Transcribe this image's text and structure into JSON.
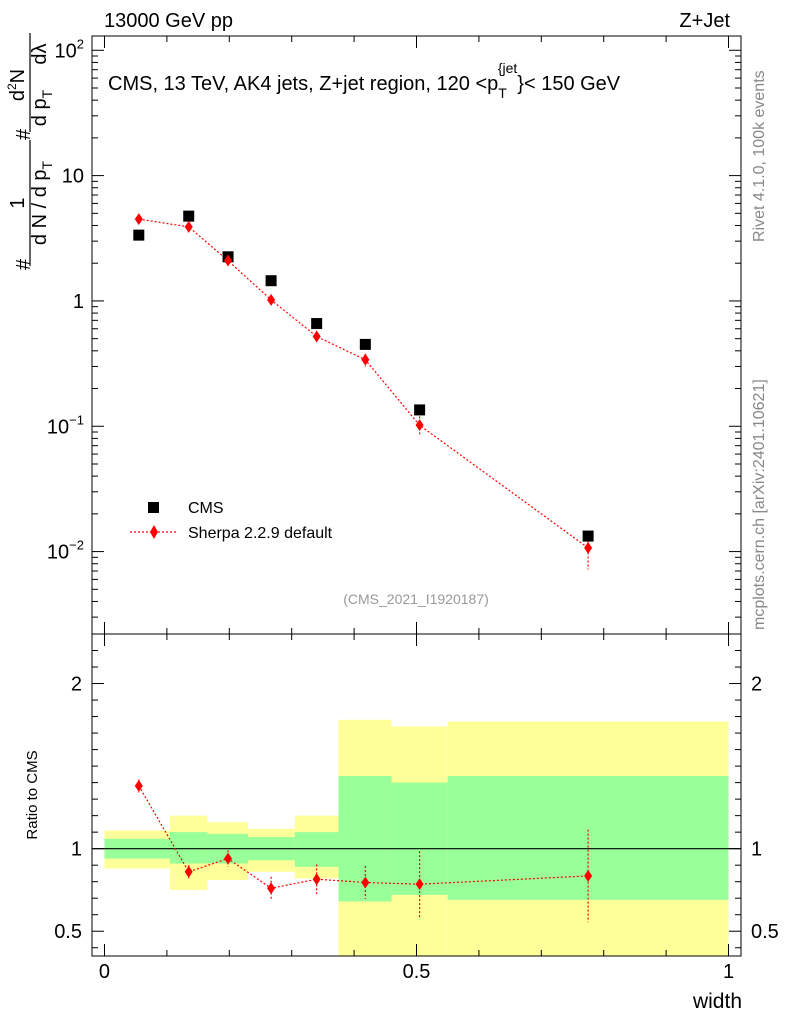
{
  "header": {
    "left": "13000 GeV pp",
    "right": "Z+Jet"
  },
  "side_labels": {
    "rivet": "Rivet 4.1.0,  100k events",
    "mcplots": "mcplots.cern.ch [arXiv:2401.10621]"
  },
  "colors": {
    "data": "#000000",
    "mc": "#ff0000",
    "band_inner": "#99ff99",
    "band_outer": "#ffff99",
    "axis": "#000000",
    "watermark": "#999999"
  },
  "chart_data": [
    {
      "type": "scatter",
      "log_y": true,
      "title": "CMS, 13 TeV, AK4 jets, Z+jet region, 120 <p",
      "title_sub": "T",
      "title_sup": "{jet",
      "title_tail": "}< 150 GeV",
      "watermark": "(CMS_2021_I1920187)",
      "xlim": [
        -0.02,
        1.02
      ],
      "ylim": [
        0.0022,
        130
      ],
      "ylabel": {
        "num_sym": "#",
        "num_frac_top": "1",
        "num_frac_bottom": "d N / d p",
        "num_frac_bottom_sub": "T",
        "num_hash": "#",
        "num_d2": "d",
        "num_d2_sup": "2",
        "num_d2_tail": "N",
        "num_dp": "d p",
        "num_dp_sub": "T",
        "num_dlambda": "d",
        "num_lambda": "λ"
      },
      "y_ticks": [
        {
          "value": 100,
          "base": "10",
          "exp": "2"
        },
        {
          "value": 10,
          "base": "10",
          "exp": ""
        },
        {
          "value": 1,
          "base": "1",
          "exp": ""
        },
        {
          "value": 0.1,
          "base": "10",
          "exp": "−1"
        },
        {
          "value": 0.01,
          "base": "10",
          "exp": "−2"
        }
      ],
      "x_edges": [
        0.0,
        0.105,
        0.165,
        0.23,
        0.305,
        0.375,
        0.46,
        0.55,
        1.0
      ],
      "series": [
        {
          "name": "CMS",
          "marker": "square",
          "x": [
            0.055,
            0.135,
            0.198,
            0.267,
            0.34,
            0.418,
            0.505,
            0.775
          ],
          "y": [
            3.35,
            4.75,
            2.25,
            1.45,
            0.66,
            0.45,
            0.135,
            0.0133
          ]
        },
        {
          "name": "Sherpa 2.2.9 default",
          "marker": "diamond",
          "line": "dotted",
          "x": [
            0.055,
            0.135,
            0.198,
            0.267,
            0.34,
            0.418,
            0.505,
            0.775
          ],
          "y": [
            4.5,
            3.9,
            2.1,
            1.02,
            0.52,
            0.34,
            0.102,
            0.0107
          ],
          "yerr": [
            0.1,
            0.15,
            0.1,
            0.06,
            0.05,
            0.04,
            0.018,
            0.0035
          ]
        }
      ]
    },
    {
      "type": "scatter",
      "ylabel": "Ratio to CMS",
      "xlabel": "width",
      "ylim": [
        0.35,
        2.3
      ],
      "xlim": [
        -0.02,
        1.02
      ],
      "y_ticks": [
        "0.5",
        "1",
        "2"
      ],
      "x_ticks": [
        "0",
        "0.5",
        "1"
      ],
      "x_tick_values": [
        0,
        0.5,
        1
      ],
      "y_tick_values": [
        0.5,
        1,
        2
      ],
      "band_bins": [
        {
          "lo": 0.0,
          "hi": 0.105,
          "inner": [
            0.94,
            1.06
          ],
          "outer": [
            0.88,
            1.11
          ]
        },
        {
          "lo": 0.105,
          "hi": 0.165,
          "inner": [
            0.91,
            1.1
          ],
          "outer": [
            0.75,
            1.2
          ]
        },
        {
          "lo": 0.165,
          "hi": 0.23,
          "inner": [
            0.91,
            1.09
          ],
          "outer": [
            0.81,
            1.16
          ]
        },
        {
          "lo": 0.23,
          "hi": 0.305,
          "inner": [
            0.93,
            1.07
          ],
          "outer": [
            0.86,
            1.12
          ]
        },
        {
          "lo": 0.305,
          "hi": 0.375,
          "inner": [
            0.89,
            1.1
          ],
          "outer": [
            0.82,
            1.2
          ]
        },
        {
          "lo": 0.375,
          "hi": 0.46,
          "inner": [
            0.68,
            1.44
          ],
          "outer": [
            0.35,
            1.78
          ]
        },
        {
          "lo": 0.46,
          "hi": 0.55,
          "inner": [
            0.72,
            1.4
          ],
          "outer": [
            0.35,
            1.74
          ]
        },
        {
          "lo": 0.55,
          "hi": 1.0,
          "inner": [
            0.69,
            1.44
          ],
          "outer": [
            0.35,
            1.77
          ]
        }
      ],
      "series": [
        {
          "name": "Sherpa 2.2.9 default",
          "x": [
            0.055,
            0.135,
            0.198,
            0.267,
            0.34,
            0.418,
            0.505,
            0.775
          ],
          "y": [
            1.38,
            0.86,
            0.94,
            0.76,
            0.815,
            0.795,
            0.785,
            0.835
          ],
          "yerr": [
            0.04,
            0.04,
            0.05,
            0.07,
            0.09,
            0.1,
            0.2,
            0.28
          ]
        }
      ]
    }
  ]
}
